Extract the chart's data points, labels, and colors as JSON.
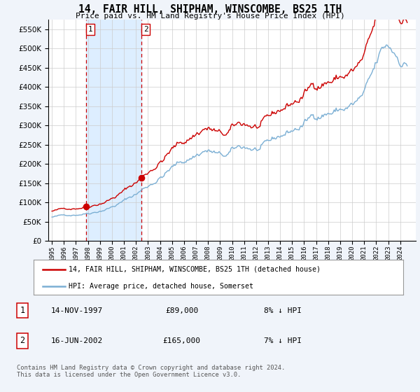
{
  "title": "14, FAIR HILL, SHIPHAM, WINSCOMBE, BS25 1TH",
  "subtitle": "Price paid vs. HM Land Registry's House Price Index (HPI)",
  "ylim": [
    0,
    575000
  ],
  "yticks": [
    0,
    50000,
    100000,
    150000,
    200000,
    250000,
    300000,
    350000,
    400000,
    450000,
    500000,
    550000
  ],
  "ytick_labels": [
    "£0",
    "£50K",
    "£100K",
    "£150K",
    "£200K",
    "£250K",
    "£300K",
    "£350K",
    "£400K",
    "£450K",
    "£500K",
    "£550K"
  ],
  "sale1_date": 1997.87,
  "sale1_price": 89000,
  "sale2_date": 2002.46,
  "sale2_price": 165000,
  "hpi_color": "#7bafd4",
  "sale_color": "#cc0000",
  "vline_color": "#cc0000",
  "span_color": "#ddeeff",
  "background_color": "#f0f4fa",
  "plot_bg_color": "#ffffff",
  "grid_color": "#cccccc",
  "legend_label_sale": "14, FAIR HILL, SHIPHAM, WINSCOMBE, BS25 1TH (detached house)",
  "legend_label_hpi": "HPI: Average price, detached house, Somerset",
  "table_rows": [
    [
      "1",
      "14-NOV-1997",
      "£89,000",
      "8% ↓ HPI"
    ],
    [
      "2",
      "16-JUN-2002",
      "£165,000",
      "7% ↓ HPI"
    ]
  ],
  "footnote1": "Contains HM Land Registry data © Crown copyright and database right 2024.",
  "footnote2": "This data is licensed under the Open Government Licence v3.0.",
  "xlim_start": 1994.7,
  "xlim_end": 2025.3
}
